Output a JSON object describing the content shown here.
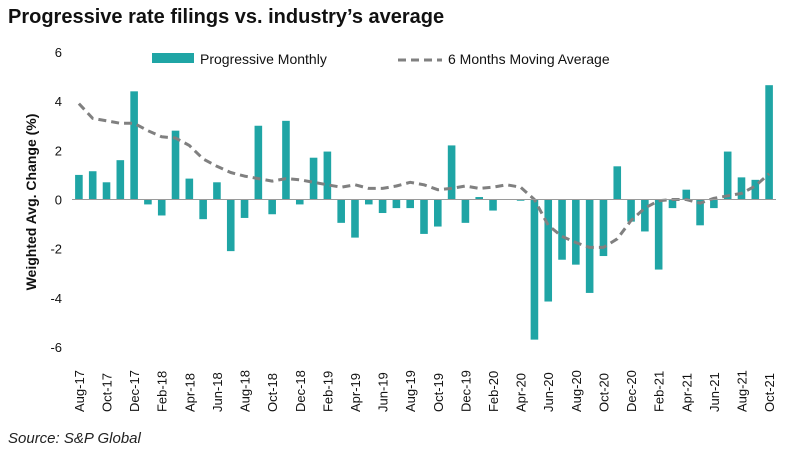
{
  "chart_data": {
    "type": "bar",
    "title": "Progressive rate filings vs. industry’s average",
    "source": "Source: S&P Global",
    "ylabel": "Weighted Avg. Change (%)",
    "ylim": [
      -6,
      6
    ],
    "yticks": [
      6,
      4,
      2,
      0,
      -2,
      -4,
      -6
    ],
    "colors": {
      "bar": "#1fa5a5",
      "line": "#808080"
    },
    "x": [
      "Aug-17",
      "Sep-17",
      "Oct-17",
      "Nov-17",
      "Dec-17",
      "Jan-18",
      "Feb-18",
      "Mar-18",
      "Apr-18",
      "May-18",
      "Jun-18",
      "Jul-18",
      "Aug-18",
      "Sep-18",
      "Oct-18",
      "Nov-18",
      "Dec-18",
      "Jan-19",
      "Feb-19",
      "Mar-19",
      "Apr-19",
      "May-19",
      "Jun-19",
      "Jul-19",
      "Aug-19",
      "Sep-19",
      "Oct-19",
      "Nov-19",
      "Dec-19",
      "Jan-20",
      "Feb-20",
      "Mar-20",
      "Apr-20",
      "May-20",
      "Jun-20",
      "Jul-20",
      "Aug-20",
      "Sep-20",
      "Oct-20",
      "Nov-20",
      "Dec-20",
      "Jan-21",
      "Feb-21",
      "Mar-21",
      "Apr-21",
      "May-21",
      "Jun-21",
      "Jul-21",
      "Aug-21",
      "Sep-21",
      "Oct-21"
    ],
    "tick_labels": [
      "Aug-17",
      "Oct-17",
      "Dec-17",
      "Feb-18",
      "Apr-18",
      "Jun-18",
      "Aug-18",
      "Oct-18",
      "Dec-18",
      "Feb-19",
      "Apr-19",
      "Jun-19",
      "Aug-19",
      "Oct-19",
      "Dec-19",
      "Feb-20",
      "Apr-20",
      "Jun-20",
      "Aug-20",
      "Oct-20",
      "Dec-20",
      "Feb-21",
      "Apr-21",
      "Jun-21",
      "Aug-21",
      "Oct-21"
    ],
    "series": [
      {
        "name": "Progressive Monthly",
        "type": "bar",
        "values": [
          1.0,
          1.15,
          0.7,
          1.6,
          4.4,
          -0.2,
          -0.65,
          2.8,
          0.85,
          -0.8,
          0.7,
          -2.1,
          -0.75,
          3.0,
          -0.6,
          3.2,
          -0.2,
          1.7,
          1.95,
          -0.95,
          -1.55,
          -0.2,
          -0.55,
          -0.35,
          -0.35,
          -1.4,
          -1.1,
          2.2,
          -0.95,
          0.1,
          -0.45,
          0.0,
          -0.05,
          -5.7,
          -4.15,
          -2.45,
          -2.65,
          -3.8,
          -2.3,
          1.35,
          -0.9,
          -1.3,
          -2.85,
          -0.35,
          0.4,
          -1.05,
          -0.35,
          1.95,
          0.9,
          0.8,
          4.65
        ]
      },
      {
        "name": "6 Months Moving Average",
        "type": "line",
        "values": [
          3.9,
          3.3,
          3.2,
          3.1,
          3.1,
          2.8,
          2.55,
          2.5,
          2.2,
          1.65,
          1.35,
          1.1,
          0.95,
          0.85,
          0.75,
          0.85,
          0.8,
          0.7,
          0.6,
          0.5,
          0.6,
          0.45,
          0.45,
          0.55,
          0.7,
          0.6,
          0.4,
          0.45,
          0.55,
          0.45,
          0.5,
          0.6,
          0.5,
          0.0,
          -1.05,
          -1.5,
          -1.75,
          -1.95,
          -1.95,
          -1.6,
          -0.85,
          -0.35,
          -0.05,
          0.0,
          0.0,
          -0.15,
          0.05,
          0.15,
          0.25,
          0.55,
          1.05
        ]
      }
    ]
  }
}
